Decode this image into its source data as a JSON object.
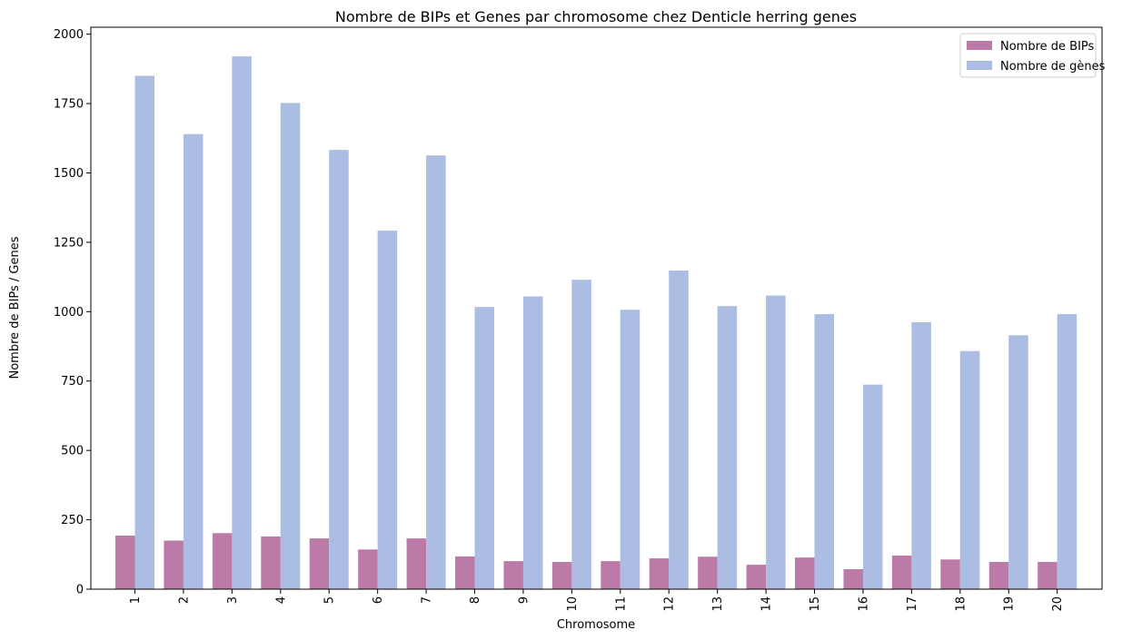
{
  "chart_data": {
    "type": "bar",
    "title": "Nombre de BIPs et Genes par chromosome chez Denticle herring genes",
    "xlabel": "Chromosome",
    "ylabel": "Nombre de BIPs / Genes",
    "categories": [
      "1",
      "2",
      "3",
      "4",
      "5",
      "6",
      "7",
      "8",
      "9",
      "10",
      "11",
      "12",
      "13",
      "14",
      "15",
      "16",
      "17",
      "18",
      "19",
      "20"
    ],
    "ylim": [
      0,
      2025
    ],
    "yticks": [
      0,
      250,
      500,
      750,
      1000,
      1250,
      1500,
      1750,
      2000
    ],
    "grid": false,
    "legend_position": "top-right",
    "series": [
      {
        "name": "Nombre de BIPs",
        "color": "#bc7aa8",
        "values": [
          193,
          175,
          202,
          190,
          183,
          143,
          183,
          118,
          101,
          98,
          101,
          111,
          117,
          88,
          114,
          72,
          121,
          107,
          98,
          98
        ]
      },
      {
        "name": "Nombre de gènes",
        "color": "#abbde2",
        "values": [
          1850,
          1640,
          1920,
          1752,
          1583,
          1292,
          1563,
          1017,
          1055,
          1115,
          1007,
          1148,
          1020,
          1058,
          991,
          737,
          962,
          858,
          915,
          991
        ]
      }
    ]
  }
}
